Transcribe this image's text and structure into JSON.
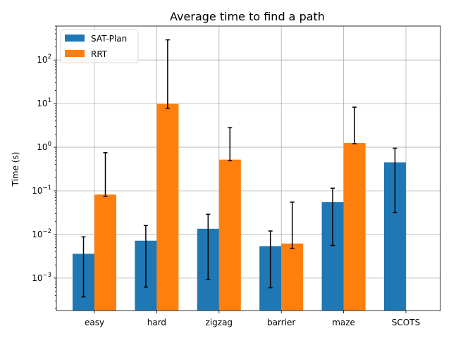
{
  "chart_data": {
    "type": "bar",
    "title": "Average time to find a path",
    "xlabel": "",
    "ylabel": "Time (s)",
    "yscale": "log",
    "ylim": [
      0.00018,
      600
    ],
    "y_ticks": [
      {
        "value": 0.001,
        "base": "10",
        "exp": "−3"
      },
      {
        "value": 0.01,
        "base": "10",
        "exp": "−2"
      },
      {
        "value": 0.1,
        "base": "10",
        "exp": "−1"
      },
      {
        "value": 1,
        "base": "10",
        "exp": "0"
      },
      {
        "value": 10,
        "base": "10",
        "exp": "1"
      },
      {
        "value": 100,
        "base": "10",
        "exp": "2"
      }
    ],
    "grid": true,
    "legend_position": "top-left",
    "categories": [
      "easy",
      "hard",
      "zigzag",
      "barrier",
      "maze",
      "SCOTS"
    ],
    "series": [
      {
        "name": "SAT-Plan",
        "color": "#1f77b4",
        "values": [
          0.0036,
          0.0072,
          0.0135,
          0.0054,
          0.055,
          0.45
        ],
        "err_low": [
          0.00037,
          0.00062,
          0.00092,
          0.0006,
          0.0056,
          0.032
        ],
        "err_high": [
          0.0088,
          0.016,
          0.029,
          0.012,
          0.115,
          0.95
        ]
      },
      {
        "name": "RRT",
        "color": "#ff7f0e",
        "values": [
          0.082,
          9.8,
          0.52,
          0.0062,
          1.25,
          null
        ],
        "err_low": [
          0.075,
          7.8,
          0.49,
          0.0048,
          1.2,
          null
        ],
        "err_high": [
          0.75,
          290,
          2.8,
          0.055,
          8.3,
          null
        ]
      }
    ]
  }
}
